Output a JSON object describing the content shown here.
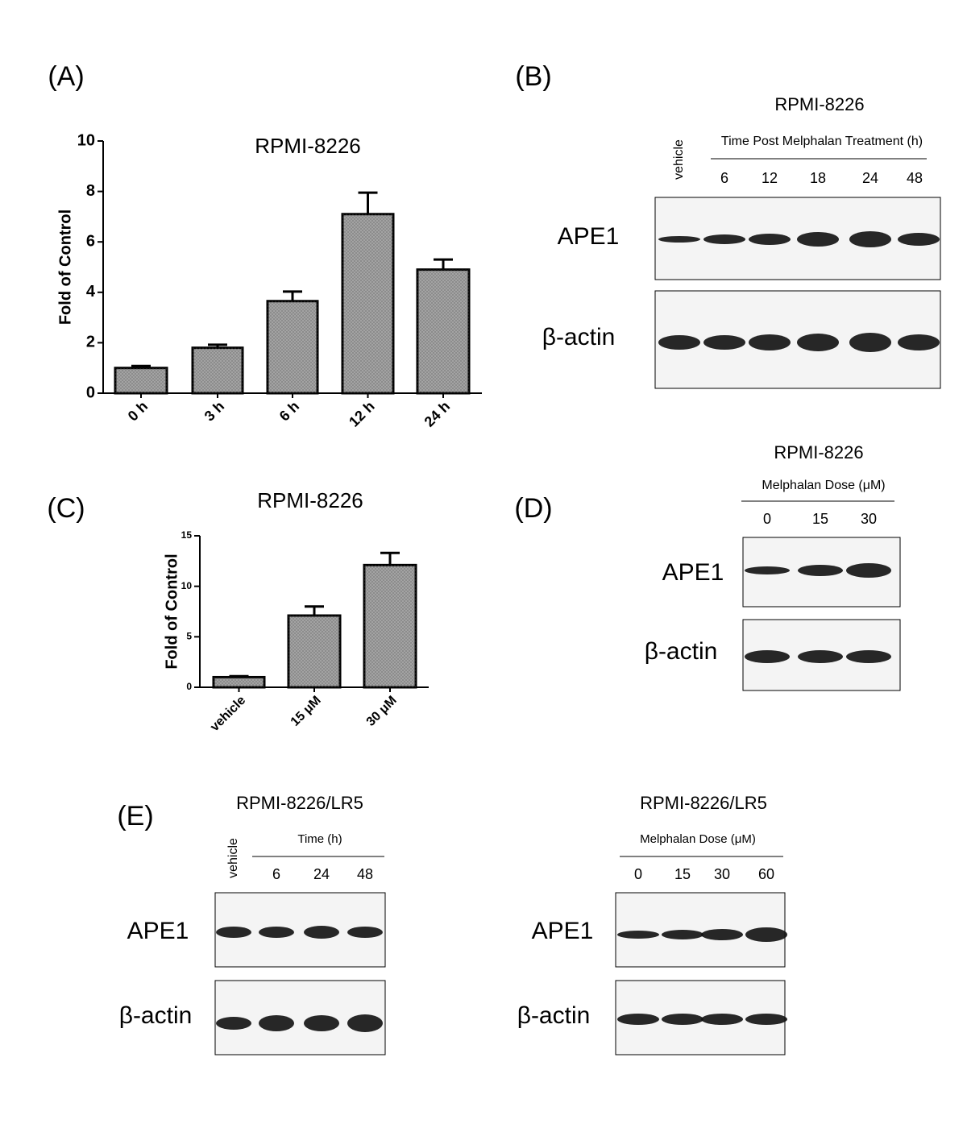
{
  "panel_labels": [
    "(A)",
    "(B)",
    "(C)",
    "(D)",
    "(E)"
  ],
  "chart_data": [
    {
      "type": "bar",
      "title": "RPMI-8226",
      "y_label": "Fold of Control",
      "categories": [
        "0 h",
        "3 h",
        "6 h",
        "12 h",
        "24 h"
      ],
      "values": [
        1.0,
        1.8,
        3.65,
        7.1,
        4.9
      ],
      "errors": [
        0.08,
        0.12,
        0.38,
        0.85,
        0.4
      ],
      "color": "#a6a6a6",
      "ylim": [
        0,
        10
      ],
      "yticks": [
        0,
        2,
        4,
        6,
        8,
        10
      ]
    },
    {
      "type": "bar",
      "title": "RPMI-8226",
      "y_label": "Fold of Control",
      "categories": [
        "vehicle",
        "15 μM",
        "30 μM"
      ],
      "values": [
        1.0,
        7.1,
        12.1
      ],
      "errors": [
        0.1,
        0.9,
        1.2
      ],
      "color": "#a6a6a6",
      "ylim": [
        0,
        15
      ],
      "yticks": [
        0,
        5,
        10,
        15
      ]
    }
  ],
  "blots": {
    "B": {
      "title": "RPMI-8226",
      "vehicle": "vehicle",
      "header": "Time Post Melphalan Treatment (h)",
      "lanes": [
        "6",
        "12",
        "18",
        "24",
        "48"
      ],
      "rows": [
        "APE1",
        "β-actin"
      ]
    },
    "D": {
      "title": "RPMI-8226",
      "header": "Melphalan Dose (μM)",
      "lanes": [
        "0",
        "15",
        "30"
      ],
      "rows": [
        "APE1",
        "β-actin"
      ]
    },
    "E1": {
      "title": "RPMI-8226/LR5",
      "vehicle": "vehicle",
      "header": "Time  (h)",
      "lanes": [
        "6",
        "24",
        "48"
      ],
      "rows": [
        "APE1",
        "β-actin"
      ]
    },
    "E2": {
      "title": "RPMI-8226/LR5",
      "header": "Melphalan Dose (μM)",
      "lanes": [
        "0",
        "15",
        "30",
        "60"
      ],
      "rows": [
        "APE1",
        "β-actin"
      ]
    }
  }
}
